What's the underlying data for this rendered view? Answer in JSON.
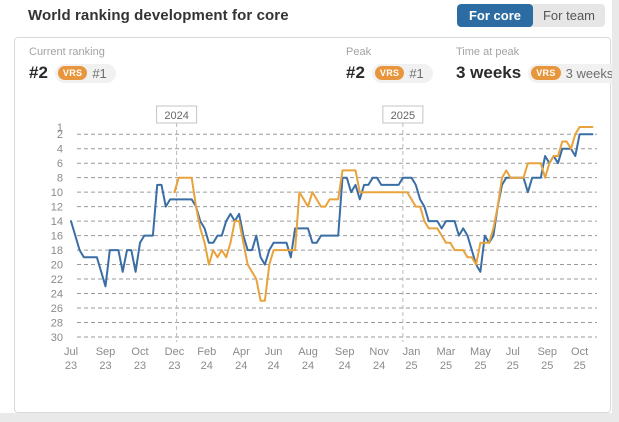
{
  "header": {
    "title": "World ranking development for core",
    "toggle": {
      "active_label": "For core",
      "inactive_label": "For team"
    }
  },
  "stats": [
    {
      "label": "Current ranking",
      "value": "#2",
      "badge": "VRS",
      "vrs_value": "#1"
    },
    {
      "label": "Peak",
      "value": "#2",
      "badge": "VRS",
      "vrs_value": "#1"
    },
    {
      "label": "Time at peak",
      "value": "3 weeks",
      "badge": "VRS",
      "vrs_value": "3 weeks"
    }
  ],
  "colors": {
    "accent_button_blue": "#2d6ca2",
    "vrs_badge_orange": "#e8963e",
    "core_line_blue": "#3a6ea5",
    "vrs_line_orange": "#e8a33c"
  },
  "chart_data": {
    "type": "line",
    "grid": true,
    "legend": "none",
    "y_inverted": true,
    "y_range": [
      1,
      30
    ],
    "y_ticks": [
      1,
      2,
      4,
      6,
      8,
      10,
      12,
      14,
      16,
      18,
      20,
      22,
      24,
      26,
      28,
      30
    ],
    "x_unit": "week",
    "x_ticks": [
      {
        "month": "Jul",
        "year": "23",
        "week": 0
      },
      {
        "month": "Sep",
        "year": "23",
        "week": 8
      },
      {
        "month": "Oct",
        "year": "23",
        "week": 16
      },
      {
        "month": "Dec",
        "year": "23",
        "week": 24
      },
      {
        "month": "Feb",
        "year": "24",
        "week": 31.5
      },
      {
        "month": "Apr",
        "year": "24",
        "week": 39.5
      },
      {
        "month": "Jun",
        "year": "24",
        "week": 47
      },
      {
        "month": "Aug",
        "year": "24",
        "week": 55
      },
      {
        "month": "Sep",
        "year": "24",
        "week": 63.5
      },
      {
        "month": "Nov",
        "year": "24",
        "week": 71.5
      },
      {
        "month": "Jan",
        "year": "25",
        "week": 79
      },
      {
        "month": "Mar",
        "year": "25",
        "week": 87
      },
      {
        "month": "May",
        "year": "25",
        "week": 95
      },
      {
        "month": "Jul",
        "year": "25",
        "week": 102.5
      },
      {
        "month": "Sep",
        "year": "25",
        "week": 110.5
      },
      {
        "month": "Oct",
        "year": "25",
        "week": 118
      }
    ],
    "year_markers": [
      {
        "label": "2024",
        "week": 24.5
      },
      {
        "label": "2025",
        "week": 77
      }
    ],
    "series": [
      {
        "id": "core-ranking",
        "color": "#3a6ea5",
        "start_week": 0,
        "ranks": [
          14,
          16,
          18,
          19,
          19,
          19,
          19,
          21,
          23,
          18,
          18,
          18,
          21,
          18,
          18,
          21,
          17,
          16,
          16,
          16,
          9,
          9,
          12,
          11,
          11,
          11,
          11,
          11,
          11,
          12,
          14,
          15,
          17,
          17,
          16,
          16,
          14,
          13,
          14,
          13,
          16,
          18,
          18,
          16,
          19,
          20,
          18,
          17,
          17,
          17,
          17,
          19,
          15,
          15,
          15,
          15,
          17,
          17,
          16,
          16,
          16,
          16,
          16,
          8,
          8,
          10,
          9,
          11,
          9,
          9,
          8,
          8,
          9,
          9,
          9,
          9,
          9,
          8,
          8,
          8,
          9,
          11,
          12,
          14,
          14,
          14,
          15,
          14,
          14,
          14,
          16,
          15,
          16,
          18,
          20,
          21,
          16,
          17,
          16,
          12,
          9,
          8,
          8,
          8,
          8,
          8,
          10,
          8,
          8,
          8,
          5,
          6,
          5,
          6,
          4,
          4,
          4,
          5,
          2,
          2,
          2,
          2
        ]
      },
      {
        "id": "vrs-ranking",
        "color": "#e8a33c",
        "start_week": 24,
        "ranks": [
          10,
          8,
          8,
          8,
          8,
          12,
          15,
          17,
          20,
          18,
          19,
          18,
          19,
          17,
          14,
          14,
          17,
          20,
          21,
          22,
          25,
          25,
          20,
          18,
          18,
          18,
          18,
          18,
          18,
          10,
          11,
          12,
          10,
          11,
          12,
          12,
          11,
          11,
          11,
          7,
          7,
          7,
          7,
          10,
          10,
          10,
          10,
          10,
          10,
          10,
          10,
          10,
          10,
          10,
          10,
          11,
          12,
          12,
          14,
          15,
          15,
          15,
          16,
          17,
          17,
          18,
          18,
          18,
          19,
          19,
          20,
          17,
          17,
          17,
          15,
          12,
          8,
          7,
          8,
          8,
          8,
          8,
          6,
          6,
          6,
          6,
          8,
          6,
          5,
          5,
          3,
          3,
          4,
          2,
          1,
          1,
          1,
          1
        ]
      }
    ]
  }
}
